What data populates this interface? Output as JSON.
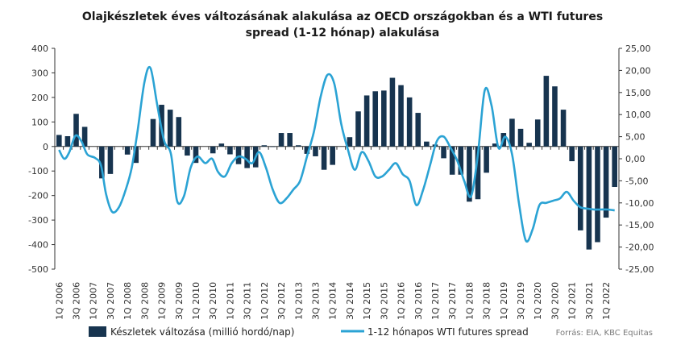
{
  "chart_data": {
    "type": "bar",
    "title": [
      "Olajkészletek éves változásának alakulása az OECD országokban és a WTI futures",
      "spread (1-12 hónap) alakulása"
    ],
    "source": "Forrás: EIA, KBC Equitas",
    "categories": [
      "1Q 2006",
      "2Q 2006",
      "3Q 2006",
      "4Q 2006",
      "1Q 2007",
      "2Q 2007",
      "3Q 2007",
      "4Q 2007",
      "1Q 2008",
      "2Q 2008",
      "3Q 2008",
      "4Q 2008",
      "1Q 2009",
      "2Q 2009",
      "3Q 2009",
      "4Q 2009",
      "1Q 2010",
      "2Q 2010",
      "3Q 2010",
      "4Q 2010",
      "1Q 2011",
      "2Q 2011",
      "3Q 2011",
      "4Q 2011",
      "1Q 2012",
      "2Q 2012",
      "3Q 2012",
      "4Q 2012",
      "1Q 2013",
      "2Q 2013",
      "3Q 2013",
      "4Q 2013",
      "1Q 2014",
      "2Q 2014",
      "3Q 2014",
      "4Q 2014",
      "1Q 2015",
      "2Q 2015",
      "3Q 2015",
      "4Q 2015",
      "1Q 2016",
      "2Q 2016",
      "3Q 2016",
      "4Q 2016",
      "1Q 2017",
      "2Q 2017",
      "3Q 2017",
      "4Q 2017",
      "1Q 2018",
      "2Q 2018",
      "3Q 2018",
      "4Q 2018",
      "1Q 2019",
      "2Q 2019",
      "3Q 2019",
      "4Q 2019",
      "1Q 2020",
      "2Q 2020",
      "3Q 2020",
      "4Q 2020",
      "1Q 2021",
      "2Q 2021",
      "3Q 2021",
      "4Q 2021",
      "1Q 2022",
      "2Q 2022"
    ],
    "xtick_labels": [
      "1Q 2006",
      "3Q 2006",
      "1Q 2007",
      "3Q 2007",
      "1Q 2008",
      "3Q 2008",
      "1Q 2009",
      "3Q 2009",
      "1Q 2010",
      "3Q 2010",
      "1Q 2011",
      "3Q 2011",
      "1Q 2012",
      "3Q 2012",
      "1Q 2013",
      "3Q 2013",
      "1Q 2014",
      "3Q 2014",
      "1Q 2015",
      "3Q 2015",
      "1Q 2016",
      "3Q 2016",
      "1Q 2017",
      "3Q 2017",
      "1Q 2018",
      "3Q 2018",
      "1Q 2019",
      "3Q 2019",
      "1Q 2020",
      "3Q 2020",
      "1Q 2021",
      "3Q 2021",
      "1Q 2022"
    ],
    "y_left": {
      "range": [
        -500,
        400
      ],
      "ticks": [
        "400",
        "300",
        "200",
        "100",
        "0",
        "-100",
        "-200",
        "-300",
        "-400",
        "-500"
      ]
    },
    "y_right": {
      "range": [
        -25,
        25
      ],
      "ticks": [
        "25,00",
        "20,00",
        "15,00",
        "10,00",
        "5,00",
        "0,00",
        "-5,00",
        "-10,00",
        "-15,00",
        "-20,00",
        "-25,00"
      ]
    },
    "grid": false,
    "legend_position": "bottom",
    "series": [
      {
        "name": "Készletek változása (millió hordó/nap)",
        "type": "bar",
        "axis": "left",
        "color": "#17344f",
        "values": [
          47,
          42,
          133,
          80,
          0,
          -130,
          -112,
          0,
          -33,
          -67,
          0,
          112,
          170,
          150,
          120,
          -37,
          -67,
          0,
          -28,
          12,
          -32,
          -72,
          -88,
          -85,
          5,
          -2,
          55,
          55,
          5,
          -30,
          -40,
          -95,
          -75,
          0,
          38,
          143,
          208,
          225,
          228,
          280,
          250,
          200,
          137,
          20,
          8,
          -48,
          -115,
          -115,
          -225,
          -215,
          -107,
          12,
          55,
          113,
          72,
          15,
          110,
          288,
          245,
          150,
          -60,
          -342,
          -420,
          -390,
          -290,
          -165
        ]
      },
      {
        "name": "1-12 hónapos WTI futures spread",
        "type": "line",
        "axis": "right",
        "color": "#2ba3d4",
        "x": [
          0,
          0.6,
          1.2,
          1.9,
          2.6,
          3.3,
          4.2,
          4.9,
          5.5,
          6.2,
          7.0,
          7.8,
          8.5,
          9.2,
          10,
          10.7,
          11.5,
          12.3,
          13.1,
          13.8,
          14.6,
          15.4,
          16.2,
          17.1,
          17.9,
          18.6,
          19.4,
          20.2,
          21,
          21.8,
          22.6,
          23.4,
          24.2,
          25,
          25.8,
          26.6,
          27.4,
          28.2,
          29,
          29.8,
          30.6,
          31.4,
          32.2,
          33,
          33.8,
          34.6,
          35.4,
          36.2,
          37,
          37.8,
          38.6,
          39.4,
          40.2,
          41,
          41.8,
          42.6,
          43.4,
          44.2,
          45,
          45.8,
          46.6,
          47.4,
          48.2,
          49,
          49.8,
          50.6,
          51.4,
          52.2,
          53,
          53.8,
          54.6,
          55.4,
          56.2,
          57,
          57.8,
          58.6,
          59.4,
          60.2,
          61,
          61.8,
          62.6,
          63.4,
          64.2,
          65
        ],
        "values": [
          2.0,
          0.0,
          1.5,
          5.2,
          4.0,
          1.0,
          0.2,
          -1.5,
          -8.0,
          -12.0,
          -11.0,
          -7.0,
          -2.0,
          6.5,
          17.5,
          20.5,
          12.0,
          4.0,
          1.0,
          -9.5,
          -8.5,
          -2.0,
          0.5,
          -1.0,
          0.0,
          -3.0,
          -4.0,
          -1.0,
          0.5,
          0.0,
          -1.0,
          1.5,
          -2.0,
          -7.0,
          -10.0,
          -9.0,
          -7.0,
          -5.0,
          0.5,
          6.0,
          14.0,
          19.0,
          17.0,
          8.0,
          2.0,
          -2.5,
          1.5,
          -0.5,
          -4.0,
          -4.0,
          -2.5,
          -1.0,
          -3.5,
          -5.0,
          -10.5,
          -7.0,
          -1.5,
          4.0,
          5.0,
          2.5,
          -0.5,
          -5.0,
          -8.5,
          1.0,
          15.5,
          12.0,
          2.5,
          5.0,
          1.0,
          -10.0,
          -18.5,
          -16.0,
          -10.5,
          -10.0,
          -9.5,
          -9.0,
          -7.5,
          -9.5,
          -11.0,
          -11.3,
          -11.5,
          -11.5,
          -11.5,
          -11.7
        ]
      }
    ]
  }
}
